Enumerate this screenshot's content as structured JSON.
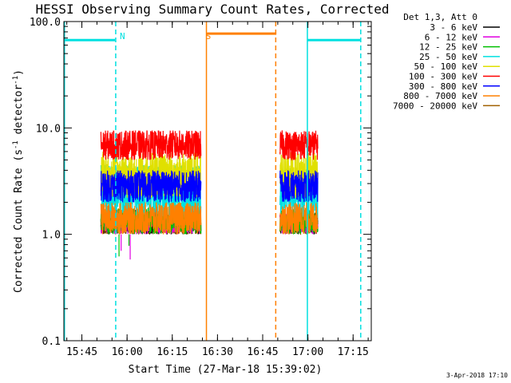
{
  "chart_data": {
    "type": "line",
    "title": "HESSI Observing Summary Count Rates, Corrected",
    "xlabel": "Start Time (27-Mar-18 15:39:02)",
    "ylabel_main": "Corrected Count Rate (s",
    "ylabel_sup1": "-1",
    "ylabel_mid": " detector",
    "ylabel_sup2": "-1",
    "ylabel_end": ")",
    "yscale": "log",
    "ylim": [
      0.1,
      100
    ],
    "xlim_minutes": [
      0,
      102
    ],
    "x_ticks": [
      {
        "label": "15:45",
        "t": 5.97
      },
      {
        "label": "16:00",
        "t": 20.97
      },
      {
        "label": "16:15",
        "t": 35.97
      },
      {
        "label": "16:30",
        "t": 50.97
      },
      {
        "label": "16:45",
        "t": 65.97
      },
      {
        "label": "17:00",
        "t": 80.97
      },
      {
        "label": "17:15",
        "t": 95.97
      }
    ],
    "y_ticks": [
      {
        "label": "100.0",
        "v": 100
      },
      {
        "label": "10.0",
        "v": 10
      },
      {
        "label": "1.0",
        "v": 1
      },
      {
        "label": "0.1",
        "v": 0.1
      }
    ],
    "legend_title": "Det 1,3, Att 0",
    "series": [
      {
        "name": "3 - 6 keV",
        "color": "#000000"
      },
      {
        "name": "6 - 12 keV",
        "color": "#e000e0"
      },
      {
        "name": "12 - 25 keV",
        "color": "#00c000"
      },
      {
        "name": "25 - 50 keV",
        "color": "#00e0e0"
      },
      {
        "name": "50 - 100 keV",
        "color": "#e0e000"
      },
      {
        "name": "100 - 300 keV",
        "color": "#ff0000"
      },
      {
        "name": "300 - 800 keV",
        "color": "#0000ff"
      },
      {
        "name": "800 - 7000 keV",
        "color": "#ff8000"
      },
      {
        "name": "7000 - 20000 keV",
        "color": "#a06000"
      }
    ],
    "data_segments_minutes": [
      [
        12.3,
        45.5
      ],
      [
        71.7,
        84.3
      ]
    ],
    "annotations": [
      {
        "label": "N",
        "t": 17.5,
        "color": "#00e0e0"
      },
      {
        "label": "S",
        "t": 46.0,
        "color": "#ff8000"
      }
    ],
    "night_bars": [
      {
        "t0": 0.2,
        "t1": 17.0,
        "v": 67,
        "color": "#00e0e0"
      },
      {
        "t0": 80.8,
        "t1": 98.5,
        "v": 67,
        "color": "#00e0e0"
      }
    ],
    "saa_bar": {
      "t0": 47.5,
      "t1": 70.5,
      "v": 77,
      "color": "#ff8000"
    },
    "vlines": [
      {
        "t": 0.2,
        "color": "#00e0e0",
        "dash": false
      },
      {
        "t": 17.2,
        "color": "#00e0e0",
        "dash": true
      },
      {
        "t": 47.3,
        "color": "#ff8000",
        "dash": false
      },
      {
        "t": 70.3,
        "color": "#ff8000",
        "dash": true
      },
      {
        "t": 80.8,
        "color": "#00e0e0",
        "dash": false
      },
      {
        "t": 98.5,
        "color": "#00e0e0",
        "dash": true
      }
    ]
  },
  "footer_date": "3-Apr-2018 17:10"
}
